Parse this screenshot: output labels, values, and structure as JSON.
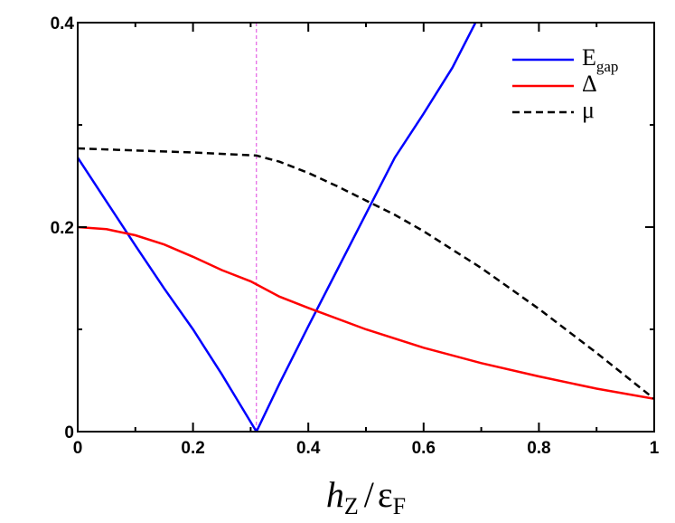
{
  "chart_data": {
    "type": "line",
    "title": "",
    "xlabel": "h_Z / ε_F",
    "xlabel_parts": {
      "main": "h",
      "main_sub": "Z",
      "sep": "/",
      "denom": "ε",
      "denom_sub": "F"
    },
    "ylabel": "",
    "xlim": [
      0,
      1
    ],
    "ylim": [
      0,
      0.4
    ],
    "xticks": [
      0,
      0.2,
      0.4,
      0.6,
      0.8,
      1
    ],
    "xtick_labels": [
      "0",
      "0.2",
      "0.4",
      "0.6",
      "0.8",
      "1"
    ],
    "yticks": [
      0,
      0.2,
      0.4
    ],
    "ytick_labels": [
      "0",
      "0.2",
      "0.4"
    ],
    "grid": false,
    "legend_position": "top-right",
    "vline": {
      "x": 0.31,
      "color": "#e040e0",
      "style": "dashed"
    },
    "series": [
      {
        "name": "E_gap",
        "legend_main": "E",
        "legend_sub": "gap",
        "color": "#0000ff",
        "style": "solid",
        "x": [
          0,
          0.05,
          0.1,
          0.15,
          0.2,
          0.25,
          0.31,
          0.35,
          0.4,
          0.45,
          0.5,
          0.55,
          0.6,
          0.65,
          0.69
        ],
        "y": [
          0.268,
          0.225,
          0.182,
          0.14,
          0.1,
          0.056,
          0.0,
          0.047,
          0.103,
          0.158,
          0.213,
          0.268,
          0.311,
          0.356,
          0.4
        ]
      },
      {
        "name": "Δ",
        "color": "#ff0000",
        "style": "solid",
        "x": [
          0,
          0.05,
          0.1,
          0.15,
          0.2,
          0.25,
          0.3,
          0.35,
          0.4,
          0.5,
          0.6,
          0.7,
          0.8,
          0.9,
          1.0
        ],
        "y": [
          0.2,
          0.198,
          0.192,
          0.183,
          0.171,
          0.158,
          0.147,
          0.132,
          0.121,
          0.1,
          0.082,
          0.067,
          0.054,
          0.042,
          0.032
        ]
      },
      {
        "name": "μ",
        "color": "#000000",
        "style": "dashed",
        "x": [
          0,
          0.1,
          0.2,
          0.31,
          0.35,
          0.4,
          0.45,
          0.5,
          0.55,
          0.6,
          0.65,
          0.7,
          0.8,
          0.9,
          1.0
        ],
        "y": [
          0.277,
          0.275,
          0.273,
          0.27,
          0.264,
          0.253,
          0.24,
          0.226,
          0.212,
          0.196,
          0.178,
          0.16,
          0.12,
          0.077,
          0.032
        ]
      }
    ]
  }
}
